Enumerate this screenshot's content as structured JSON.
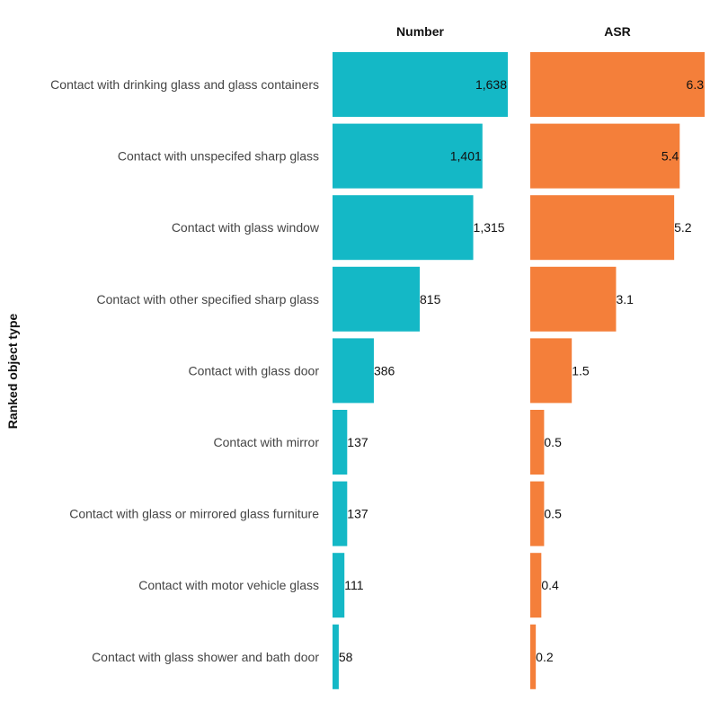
{
  "chart_data": {
    "type": "bar",
    "orientation": "horizontal",
    "ylabel": "Ranked object type",
    "categories": [
      "Contact with drinking glass and glass containers",
      "Contact with unspecifed sharp glass",
      "Contact with glass window",
      "Contact with other specified sharp glass",
      "Contact with glass door",
      "Contact with mirror",
      "Contact with glass or mirrored glass furniture",
      "Contact with motor vehicle glass",
      "Contact with glass shower and bath door"
    ],
    "series": [
      {
        "name": "Number",
        "color": "#14b8c6",
        "values": [
          1638,
          1401,
          1315,
          815,
          386,
          137,
          137,
          111,
          58
        ],
        "labels": [
          "1,638",
          "1,401",
          "1,315",
          "815",
          "386",
          "137",
          "137",
          "111",
          "58"
        ],
        "xlim": [
          0,
          1638
        ]
      },
      {
        "name": "ASR",
        "color": "#f47f3a",
        "values": [
          6.3,
          5.4,
          5.2,
          3.1,
          1.5,
          0.5,
          0.5,
          0.4,
          0.2
        ],
        "labels": [
          "6.3",
          "5.4",
          "5.2",
          "3.1",
          "1.5",
          "0.5",
          "0.5",
          "0.4",
          "0.2"
        ],
        "xlim": [
          0,
          6.3
        ]
      }
    ],
    "grid": false,
    "legend": "none"
  }
}
